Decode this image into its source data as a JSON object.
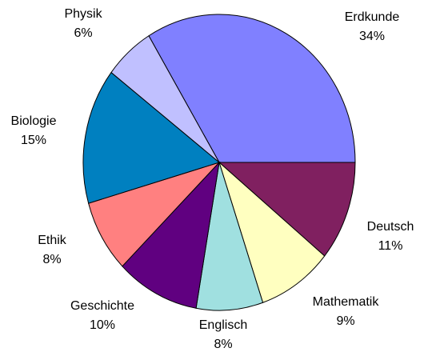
{
  "chart_data": {
    "type": "pie",
    "categories": [
      "Erdkunde",
      "Deutsch",
      "Mathematik",
      "Englisch",
      "Geschichte",
      "Ethik",
      "Biologie",
      "Physik"
    ],
    "values": [
      34,
      11,
      9,
      8,
      10,
      8,
      15,
      6
    ],
    "value_labels": [
      "34%",
      "11%",
      "9%",
      "8%",
      "10%",
      "8%",
      "15%",
      "6%"
    ],
    "colors": [
      "#8080ff",
      "#802060",
      "#ffffc0",
      "#a0e0e0",
      "#600080",
      "#ff8080",
      "#0080c0",
      "#c0c0ff"
    ]
  }
}
